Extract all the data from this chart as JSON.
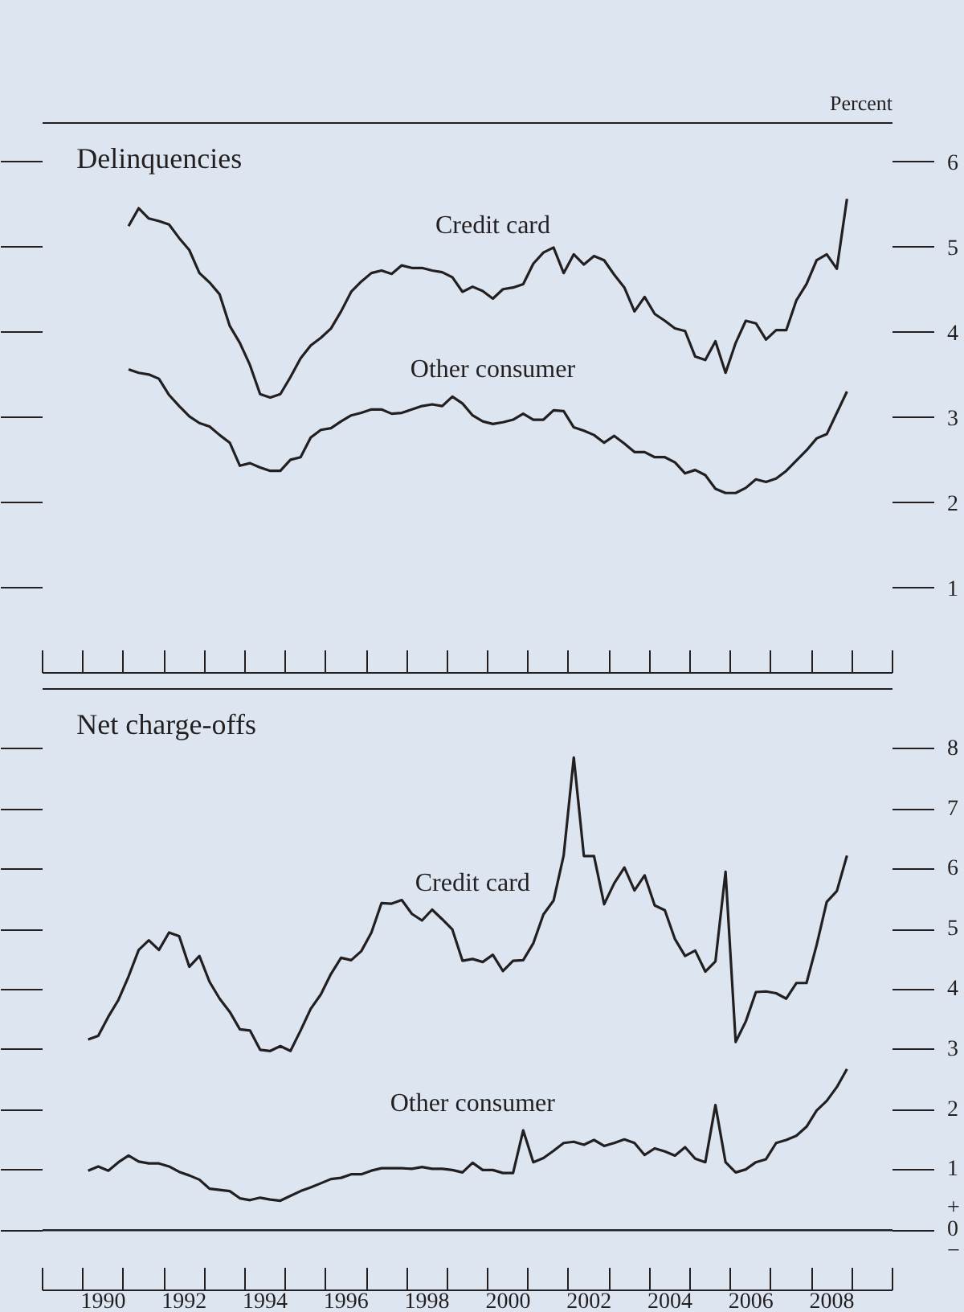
{
  "chart_data": [
    {
      "type": "line",
      "title": "Delinquencies",
      "ylabel": "Percent",
      "x": [
        1991.125,
        1991.375,
        1991.625,
        1991.875,
        1992.125,
        1992.375,
        1992.625,
        1992.875,
        1993.125,
        1993.375,
        1993.625,
        1993.875,
        1994.125,
        1994.375,
        1994.625,
        1994.875,
        1995.125,
        1995.375,
        1995.625,
        1995.875,
        1996.125,
        1996.375,
        1996.625,
        1996.875,
        1997.125,
        1997.375,
        1997.625,
        1997.875,
        1998.125,
        1998.375,
        1998.625,
        1998.875,
        1999.125,
        1999.375,
        1999.625,
        1999.875,
        2000.125,
        2000.375,
        2000.625,
        2000.875,
        2001.125,
        2001.375,
        2001.625,
        2001.875,
        2002.125,
        2002.375,
        2002.625,
        2002.875,
        2003.125,
        2003.375,
        2003.625,
        2003.875,
        2004.125,
        2004.375,
        2004.625,
        2004.875,
        2005.125,
        2005.375,
        2005.625,
        2005.875,
        2006.125,
        2006.375,
        2006.625,
        2006.875,
        2007.125,
        2007.375,
        2007.625,
        2007.875,
        2008.125,
        2008.375,
        2008.625,
        2008.875
      ],
      "series": [
        {
          "name": "Credit card",
          "color": "#231f20",
          "values": [
            5.24,
            5.45,
            5.33,
            5.3,
            5.26,
            5.1,
            4.96,
            4.69,
            4.58,
            4.44,
            4.07,
            3.87,
            3.61,
            3.27,
            3.23,
            3.27,
            3.47,
            3.69,
            3.84,
            3.93,
            4.04,
            4.24,
            4.47,
            4.59,
            4.69,
            4.72,
            4.68,
            4.78,
            4.75,
            4.75,
            4.72,
            4.7,
            4.64,
            4.47,
            4.53,
            4.48,
            4.39,
            4.5,
            4.52,
            4.56,
            4.8,
            4.93,
            4.99,
            4.69,
            4.91,
            4.79,
            4.89,
            4.84,
            4.67,
            4.52,
            4.24,
            4.41,
            4.21,
            4.13,
            4.04,
            4.01,
            3.71,
            3.67,
            3.89,
            3.52,
            3.87,
            4.13,
            4.1,
            3.91,
            4.02,
            4.02,
            4.37,
            4.56,
            4.84,
            4.91,
            4.74,
            5.56
          ]
        },
        {
          "name": "Other consumer",
          "color": "#231f20",
          "values": [
            3.56,
            3.52,
            3.5,
            3.45,
            3.26,
            3.13,
            3.01,
            2.93,
            2.89,
            2.79,
            2.7,
            2.43,
            2.46,
            2.41,
            2.37,
            2.37,
            2.5,
            2.53,
            2.76,
            2.85,
            2.87,
            2.95,
            3.02,
            3.05,
            3.09,
            3.09,
            3.04,
            3.05,
            3.09,
            3.13,
            3.15,
            3.13,
            3.24,
            3.16,
            3.02,
            2.95,
            2.92,
            2.94,
            2.97,
            3.04,
            2.97,
            2.97,
            3.08,
            3.07,
            2.88,
            2.84,
            2.79,
            2.7,
            2.78,
            2.69,
            2.59,
            2.59,
            2.53,
            2.53,
            2.47,
            2.34,
            2.38,
            2.32,
            2.16,
            2.11,
            2.11,
            2.17,
            2.27,
            2.24,
            2.28,
            2.37,
            2.49,
            2.61,
            2.75,
            2.8,
            3.05,
            3.3
          ]
        }
      ],
      "xlim": [
        1989,
        2010
      ],
      "xticks": [
        {
          "value": 1989,
          "label": null
        },
        {
          "value": 1990,
          "label": null
        },
        {
          "value": 1991,
          "label": null
        },
        {
          "value": 1992,
          "label": null
        },
        {
          "value": 1993,
          "label": null
        },
        {
          "value": 1994,
          "label": null
        },
        {
          "value": 1995,
          "label": null
        },
        {
          "value": 1996,
          "label": null
        },
        {
          "value": 1997,
          "label": null
        },
        {
          "value": 1998,
          "label": null
        },
        {
          "value": 1999,
          "label": null
        },
        {
          "value": 2000,
          "label": null
        },
        {
          "value": 2001,
          "label": null
        },
        {
          "value": 2002,
          "label": null
        },
        {
          "value": 2003,
          "label": null
        },
        {
          "value": 2004,
          "label": null
        },
        {
          "value": 2005,
          "label": null
        },
        {
          "value": 2006,
          "label": null
        },
        {
          "value": 2007,
          "label": null
        },
        {
          "value": 2008,
          "label": null
        },
        {
          "value": 2009,
          "label": null
        },
        {
          "value": 2010,
          "label": null
        }
      ],
      "ylim": [
        0,
        6.45
      ],
      "yticks": [
        1,
        2,
        3,
        4,
        5,
        6
      ],
      "tick_labels": "y",
      "legend": false,
      "grid": false
    },
    {
      "type": "line",
      "title": "Net charge-offs",
      "x": [
        1990.125,
        1990.375,
        1990.625,
        1990.875,
        1991.125,
        1991.375,
        1991.625,
        1991.875,
        1992.125,
        1992.375,
        1992.625,
        1992.875,
        1993.125,
        1993.375,
        1993.625,
        1993.875,
        1994.125,
        1994.375,
        1994.625,
        1994.875,
        1995.125,
        1995.375,
        1995.625,
        1995.875,
        1996.125,
        1996.375,
        1996.625,
        1996.875,
        1997.125,
        1997.375,
        1997.625,
        1997.875,
        1998.125,
        1998.375,
        1998.625,
        1998.875,
        1999.125,
        1999.375,
        1999.625,
        1999.875,
        2000.125,
        2000.375,
        2000.625,
        2000.875,
        2001.125,
        2001.375,
        2001.625,
        2001.875,
        2002.125,
        2002.375,
        2002.625,
        2002.875,
        2003.125,
        2003.375,
        2003.625,
        2003.875,
        2004.125,
        2004.375,
        2004.625,
        2004.875,
        2005.125,
        2005.375,
        2005.625,
        2005.875,
        2006.125,
        2006.375,
        2006.625,
        2006.875,
        2007.125,
        2007.375,
        2007.625,
        2007.875,
        2008.125,
        2008.375,
        2008.625,
        2008.875
      ],
      "series": [
        {
          "name": "Credit card",
          "color": "#231f20",
          "values": [
            3.17,
            3.23,
            3.55,
            3.83,
            4.22,
            4.66,
            4.82,
            4.66,
            4.95,
            4.89,
            4.38,
            4.56,
            4.13,
            3.85,
            3.63,
            3.34,
            3.32,
            3.0,
            2.98,
            3.06,
            2.98,
            3.32,
            3.68,
            3.92,
            4.26,
            4.53,
            4.49,
            4.64,
            4.95,
            5.44,
            5.43,
            5.49,
            5.26,
            5.15,
            5.33,
            5.17,
            5.0,
            4.48,
            4.51,
            4.46,
            4.58,
            4.31,
            4.48,
            4.49,
            4.77,
            5.25,
            5.48,
            6.23,
            7.86,
            6.22,
            6.22,
            5.42,
            5.77,
            6.03,
            5.65,
            5.9,
            5.4,
            5.32,
            4.84,
            4.56,
            4.65,
            4.3,
            4.47,
            5.96,
            3.13,
            3.47,
            3.96,
            3.97,
            3.94,
            3.85,
            4.11,
            4.11,
            4.74,
            5.46,
            5.64,
            6.23
          ]
        },
        {
          "name": "Other consumer",
          "color": "#231f20",
          "values": [
            0.99,
            1.06,
            0.99,
            1.13,
            1.24,
            1.14,
            1.11,
            1.11,
            1.06,
            0.97,
            0.91,
            0.84,
            0.69,
            0.67,
            0.65,
            0.53,
            0.5,
            0.54,
            0.51,
            0.49,
            0.57,
            0.65,
            0.71,
            0.78,
            0.85,
            0.87,
            0.93,
            0.93,
            0.99,
            1.03,
            1.03,
            1.03,
            1.02,
            1.05,
            1.02,
            1.02,
            1.0,
            0.96,
            1.12,
            1.0,
            1.0,
            0.95,
            0.95,
            1.66,
            1.13,
            1.2,
            1.32,
            1.45,
            1.47,
            1.42,
            1.5,
            1.4,
            1.45,
            1.51,
            1.45,
            1.25,
            1.36,
            1.31,
            1.24,
            1.38,
            1.19,
            1.13,
            2.08,
            1.13,
            0.96,
            1.01,
            1.13,
            1.18,
            1.45,
            1.5,
            1.57,
            1.72,
            1.99,
            2.15,
            2.38,
            2.68
          ]
        }
      ],
      "xlim": [
        1989,
        2010
      ],
      "xticks": [
        {
          "value": 1989,
          "label": null
        },
        {
          "value": 1990,
          "label": null
        },
        {
          "value": 1991,
          "label": null
        },
        {
          "value": 1992,
          "label": null
        },
        {
          "value": 1993,
          "label": null
        },
        {
          "value": 1994,
          "label": null
        },
        {
          "value": 1995,
          "label": null
        },
        {
          "value": 1996,
          "label": null
        },
        {
          "value": 1997,
          "label": null
        },
        {
          "value": 1998,
          "label": null
        },
        {
          "value": 1999,
          "label": null
        },
        {
          "value": 2000,
          "label": null
        },
        {
          "value": 2001,
          "label": null
        },
        {
          "value": 2002,
          "label": null
        },
        {
          "value": 2003,
          "label": null
        },
        {
          "value": 2004,
          "label": null
        },
        {
          "value": 2005,
          "label": null
        },
        {
          "value": 2006,
          "label": null
        },
        {
          "value": 2007,
          "label": null
        },
        {
          "value": 2008,
          "label": null
        },
        {
          "value": 2009,
          "label": null
        },
        {
          "value": 2010,
          "label": null
        },
        {
          "value": 1990.5,
          "label": "1990"
        },
        {
          "value": 1992.5,
          "label": "1992"
        },
        {
          "value": 1994.5,
          "label": "1994"
        },
        {
          "value": 1996.5,
          "label": "1996"
        },
        {
          "value": 1998.5,
          "label": "1998"
        },
        {
          "value": 2000.5,
          "label": "2000"
        },
        {
          "value": 2002.5,
          "label": "2002"
        },
        {
          "value": 2004.5,
          "label": "2004"
        },
        {
          "value": 2006.5,
          "label": "2006"
        },
        {
          "value": 2008.5,
          "label": "2008"
        }
      ],
      "ylim": [
        -1,
        9
      ],
      "yticks": [
        {
          "value": 0,
          "label": "+\n0\n−"
        },
        1,
        2,
        3,
        4,
        5,
        6,
        7,
        8
      ],
      "ref_lines": [
        {
          "axis": "y",
          "value": 0,
          "label": null
        }
      ],
      "legend": false,
      "grid": false
    }
  ]
}
